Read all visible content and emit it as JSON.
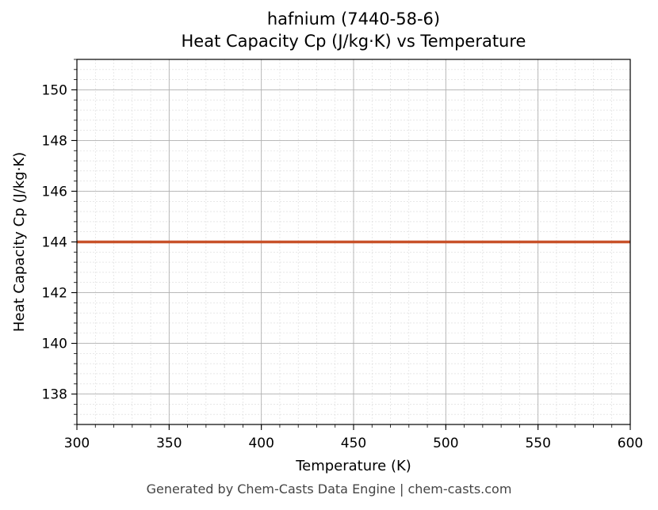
{
  "chart_data": {
    "type": "line",
    "title": "hafnium (7440-58-6)",
    "subtitle": "Heat Capacity Cp (J/kg·K) vs Temperature",
    "xlabel": "Temperature (K)",
    "ylabel": "Heat Capacity Cp (J/kg·K)",
    "xlim": [
      300,
      600
    ],
    "ylim": [
      136.8,
      151.2
    ],
    "xticks": [
      300,
      350,
      400,
      450,
      500,
      550,
      600
    ],
    "yticks": [
      138,
      140,
      142,
      144,
      146,
      148,
      150
    ],
    "grid": true,
    "series": [
      {
        "color": "#c8522a",
        "x": [
          300,
          600
        ],
        "y": [
          144,
          144
        ]
      }
    ]
  },
  "footer": "Generated by Chem-Casts Data Engine | chem-casts.com"
}
